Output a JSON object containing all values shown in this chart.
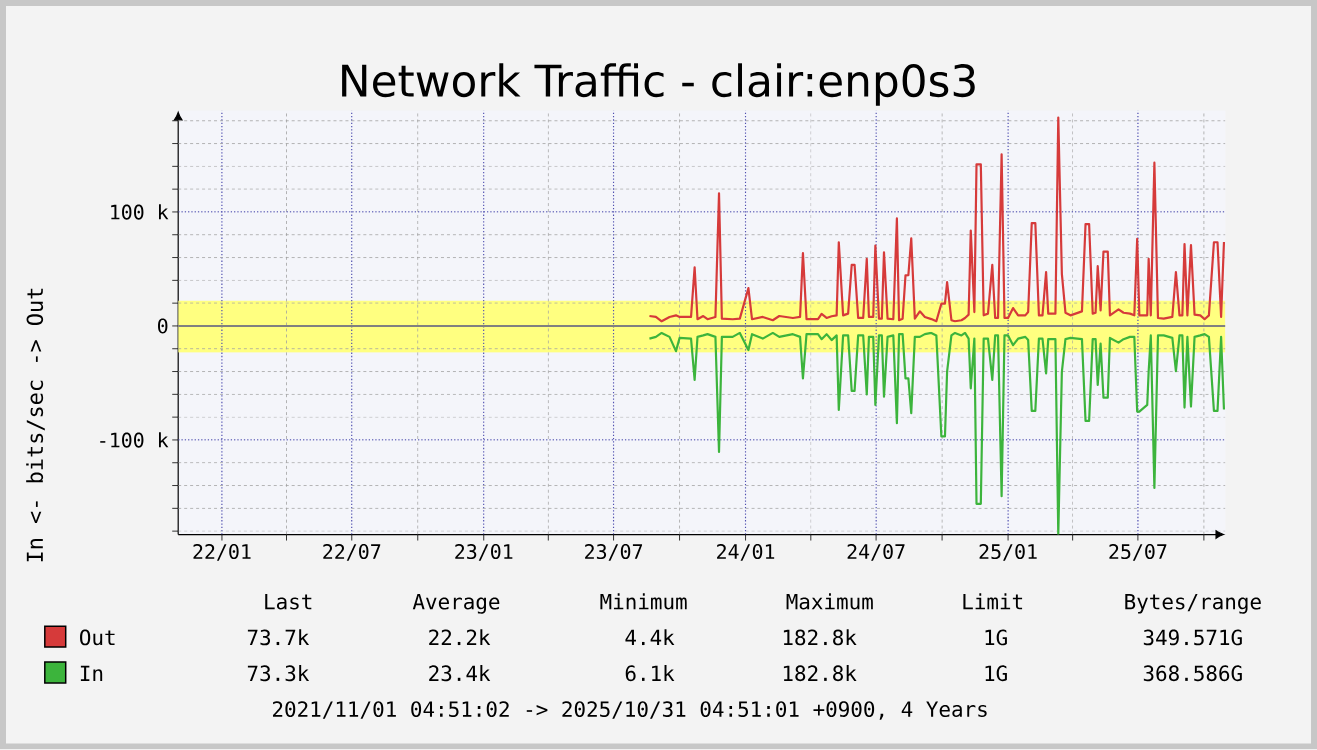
{
  "chart_data": {
    "type": "line",
    "title": "Network Traffic - clair:enp0s3",
    "ylabel": "In <- bits/sec -> Out",
    "x": [
      "2023-08-20",
      "2023-08-29",
      "2023-09-06",
      "2023-09-17",
      "2023-09-26",
      "2023-10-01",
      "2023-10-17",
      "2023-10-22",
      "2023-10-26",
      "2023-11-03",
      "2023-11-09",
      "2023-11-20",
      "2023-11-25",
      "2023-11-29",
      "2023-12-14",
      "2023-12-24",
      "2024-01-05",
      "2024-01-10",
      "2024-01-25",
      "2024-02-08",
      "2024-02-17",
      "2024-03-07",
      "2024-03-17",
      "2024-03-21",
      "2024-03-26",
      "2024-04-11",
      "2024-04-16",
      "2024-04-23",
      "2024-04-30",
      "2024-05-07",
      "2024-05-10",
      "2024-05-16",
      "2024-05-23",
      "2024-05-28",
      "2024-06-01",
      "2024-06-06",
      "2024-06-13",
      "2024-06-18",
      "2024-06-21",
      "2024-06-27",
      "2024-06-30",
      "2024-07-05",
      "2024-07-09",
      "2024-07-12",
      "2024-07-17",
      "2024-07-25",
      "2024-07-30",
      "2024-08-02",
      "2024-08-07",
      "2024-08-11",
      "2024-08-15",
      "2024-08-19",
      "2024-08-24",
      "2024-08-31",
      "2024-09-07",
      "2024-09-16",
      "2024-09-23",
      "2024-09-30",
      "2024-10-05",
      "2024-10-08",
      "2024-10-14",
      "2024-10-19",
      "2024-10-28",
      "2024-11-02",
      "2024-11-07",
      "2024-11-10",
      "2024-11-15",
      "2024-11-18",
      "2024-11-24",
      "2024-11-28",
      "2024-12-04",
      "2024-12-10",
      "2024-12-14",
      "2024-12-18",
      "2024-12-23",
      "2024-12-27",
      "2025-01-01",
      "2025-01-08",
      "2025-01-15",
      "2025-01-25",
      "2025-01-29",
      "2025-02-03",
      "2025-02-08",
      "2025-02-13",
      "2025-02-18",
      "2025-02-23",
      "2025-02-26",
      "2025-03-08",
      "2025-03-12",
      "2025-03-17",
      "2025-03-22",
      "2025-03-29",
      "2025-04-14",
      "2025-04-19",
      "2025-04-24",
      "2025-04-29",
      "2025-05-03",
      "2025-05-06",
      "2025-05-10",
      "2025-05-14",
      "2025-05-20",
      "2025-05-23",
      "2025-06-04",
      "2025-06-11",
      "2025-06-20",
      "2025-06-26",
      "2025-06-30",
      "2025-07-03",
      "2025-07-14",
      "2025-07-16",
      "2025-07-19",
      "2025-07-24",
      "2025-07-29",
      "2025-08-06",
      "2025-08-18",
      "2025-08-23",
      "2025-08-28",
      "2025-09-01",
      "2025-09-04",
      "2025-09-08",
      "2025-09-13",
      "2025-09-18",
      "2025-09-26",
      "2025-10-02",
      "2025-10-08",
      "2025-10-15",
      "2025-10-20",
      "2025-10-25",
      "2025-10-29"
    ],
    "series": [
      {
        "name": "Out",
        "color": "#d63a3a",
        "values": [
          8700,
          7900,
          4100,
          7900,
          9300,
          7900,
          7900,
          51500,
          5900,
          8700,
          5900,
          7900,
          116400,
          6400,
          5900,
          6400,
          33200,
          5900,
          7900,
          5000,
          8700,
          7000,
          7900,
          64000,
          5900,
          5900,
          10500,
          7000,
          8500,
          9300,
          73400,
          9300,
          10800,
          53600,
          53600,
          7000,
          7000,
          58800,
          7900,
          7900,
          70500,
          6400,
          6400,
          64600,
          6400,
          5900,
          94300,
          5000,
          6400,
          44300,
          44600,
          76900,
          6400,
          12800,
          7900,
          6000,
          4100,
          19500,
          19500,
          38400,
          5000,
          4100,
          5000,
          7000,
          9900,
          83600,
          12200,
          141800,
          141800,
          9300,
          10800,
          53600,
          7000,
          7000,
          150600,
          7000,
          7000,
          15700,
          9300,
          9300,
          12200,
          90200,
          90200,
          9300,
          9300,
          47200,
          10800,
          10800,
          182800,
          45700,
          11600,
          9300,
          12800,
          89300,
          89300,
          10800,
          11600,
          52400,
          13700,
          65200,
          65200,
          9300,
          14600,
          11600,
          10800,
          9300,
          76300,
          9300,
          9300,
          58800,
          9300,
          143200,
          7000,
          6400,
          7900,
          47200,
          9300,
          9300,
          71900,
          9300,
          71000,
          9900,
          9300,
          5900,
          9300,
          73400,
          73400,
          7900,
          73700
        ]
      },
      {
        "name": "In",
        "color": "#3cb43c",
        "values": [
          -11100,
          -9600,
          -6100,
          -9600,
          -22100,
          -10500,
          -11100,
          -47400,
          -9600,
          -8300,
          -7200,
          -9600,
          -110600,
          -9600,
          -9600,
          -6100,
          -21200,
          -7200,
          -11100,
          -6100,
          -9600,
          -7200,
          -9600,
          -46000,
          -7200,
          -7200,
          -11600,
          -7200,
          -12400,
          -8300,
          -73700,
          -8300,
          -8300,
          -57000,
          -57000,
          -8300,
          -8300,
          -60000,
          -9600,
          -9600,
          -69300,
          -8300,
          -8300,
          -62000,
          -9600,
          -8300,
          -85300,
          -7200,
          -7200,
          -46000,
          -46000,
          -76600,
          -9600,
          -9600,
          -7200,
          -6100,
          -8300,
          -96900,
          -96900,
          -40000,
          -8300,
          -6100,
          -8300,
          -6100,
          -11100,
          -54700,
          -11100,
          -156000,
          -156000,
          -11100,
          -11100,
          -47400,
          -8300,
          -8300,
          -149300,
          -8300,
          -8300,
          -16900,
          -11100,
          -9600,
          -12400,
          -74500,
          -74500,
          -11100,
          -11100,
          -41600,
          -11600,
          -11600,
          -182800,
          -40200,
          -11600,
          -10500,
          -11600,
          -83300,
          -83300,
          -11600,
          -11600,
          -51800,
          -15400,
          -62900,
          -62900,
          -10500,
          -14600,
          -11600,
          -9600,
          -9600,
          -75100,
          -75100,
          -69300,
          -40000,
          -8300,
          -142100,
          -8300,
          -8300,
          -10500,
          -39600,
          -8300,
          -8300,
          -71600,
          -9600,
          -70700,
          -9600,
          -8300,
          -7200,
          -9600,
          -74500,
          -74500,
          -9600,
          -73300
        ]
      }
    ],
    "xlim": [
      "2021-11-01",
      "2025-10-31"
    ],
    "xticks": [
      {
        "value": "2022-01-01",
        "label": "22/01"
      },
      {
        "value": "2022-04-01",
        "label": null
      },
      {
        "value": "2022-07-01",
        "label": "22/07"
      },
      {
        "value": "2022-10-01",
        "label": null
      },
      {
        "value": "2023-01-01",
        "label": "23/01"
      },
      {
        "value": "2023-04-01",
        "label": null
      },
      {
        "value": "2023-07-01",
        "label": "23/07"
      },
      {
        "value": "2023-10-01",
        "label": null
      },
      {
        "value": "2024-01-01",
        "label": "24/01"
      },
      {
        "value": "2024-04-01",
        "label": null
      },
      {
        "value": "2024-07-01",
        "label": "24/07"
      },
      {
        "value": "2024-10-01",
        "label": null
      },
      {
        "value": "2025-01-01",
        "label": "25/01"
      },
      {
        "value": "2025-04-01",
        "label": null
      },
      {
        "value": "2025-07-01",
        "label": "25/07"
      },
      {
        "value": "2025-10-01",
        "label": null
      }
    ],
    "ylim": [
      -183000,
      189000
    ],
    "yticks": [
      {
        "value": -180000,
        "label": null
      },
      {
        "value": -160000,
        "label": null
      },
      {
        "value": -140000,
        "label": null
      },
      {
        "value": -120000,
        "label": null
      },
      {
        "value": -100000,
        "label": "-100 k"
      },
      {
        "value": -80000,
        "label": null
      },
      {
        "value": -60000,
        "label": null
      },
      {
        "value": -40000,
        "label": null
      },
      {
        "value": -20000,
        "label": null
      },
      0,
      {
        "value": 20000,
        "label": null
      },
      {
        "value": 40000,
        "label": null
      },
      {
        "value": 60000,
        "label": null
      },
      {
        "value": 80000,
        "label": null
      },
      {
        "value": 100000,
        "label": "100 k"
      },
      {
        "value": 120000,
        "label": null
      },
      {
        "value": 140000,
        "label": null
      },
      {
        "value": 160000,
        "label": null
      },
      {
        "value": 180000,
        "label": null
      }
    ],
    "bands": [
      {
        "axis": "y",
        "from": -23400,
        "to": 22200,
        "color": "#ffff80"
      }
    ],
    "ref_lines": [
      {
        "axis": "y",
        "value": 0,
        "color": "#808080"
      }
    ],
    "grid": true,
    "legend": "bottom",
    "annotations": [
      "Last",
      "Average",
      "Minimum",
      "Maximum",
      "Limit",
      "Bytes/range",
      "73.7k",
      "22.2k",
      "4.4k",
      "182.8k",
      "1G",
      "349.571G",
      "73.3k",
      "23.4k",
      "6.1k",
      "182.8k",
      "1G",
      "368.586G",
      "2021/11/01 04:51:02 -> 2025/10/31 04:51:01 +0900, 4 Years"
    ]
  }
}
